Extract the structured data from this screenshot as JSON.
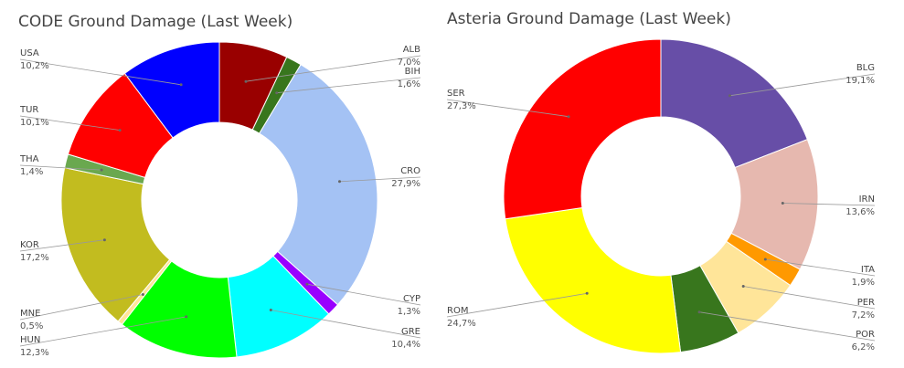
{
  "chart_data": [
    {
      "type": "pie",
      "donut": true,
      "title": "CODE Ground Damage (Last Week)",
      "slices": [
        {
          "label": "ALB",
          "value": 7.0,
          "display": "7,0%",
          "color": "#990000"
        },
        {
          "label": "BIH",
          "value": 1.6,
          "display": "1,6%",
          "color": "#38761d"
        },
        {
          "label": "CRO",
          "value": 27.9,
          "display": "27,9%",
          "color": "#a4c2f4"
        },
        {
          "label": "CYP",
          "value": 1.3,
          "display": "1,3%",
          "color": "#9900ff"
        },
        {
          "label": "GRE",
          "value": 10.4,
          "display": "10,4%",
          "color": "#00ffff"
        },
        {
          "label": "HUN",
          "value": 12.3,
          "display": "12,3%",
          "color": "#00ff00"
        },
        {
          "label": "MNE",
          "value": 0.5,
          "display": "0,5%",
          "color": "#ffe599"
        },
        {
          "label": "KOR",
          "value": 17.2,
          "display": "17,2%",
          "color": "#c2bc1f"
        },
        {
          "label": "THA",
          "value": 1.4,
          "display": "1,4%",
          "color": "#6aa84f"
        },
        {
          "label": "TUR",
          "value": 10.1,
          "display": "10,1%",
          "color": "#ff0000"
        },
        {
          "label": "USA",
          "value": 10.2,
          "display": "10,2%",
          "color": "#0000ff"
        }
      ]
    },
    {
      "type": "pie",
      "donut": true,
      "title": "Asteria Ground Damage (Last Week)",
      "slices": [
        {
          "label": "BLG",
          "value": 19.1,
          "display": "19,1%",
          "color": "#674ea7"
        },
        {
          "label": "IRN",
          "value": 13.6,
          "display": "13,6%",
          "color": "#e6b8af"
        },
        {
          "label": "ITA",
          "value": 1.9,
          "display": "1,9%",
          "color": "#ff9900"
        },
        {
          "label": "PER",
          "value": 7.2,
          "display": "7,2%",
          "color": "#ffe599"
        },
        {
          "label": "POR",
          "value": 6.2,
          "display": "6,2%",
          "color": "#38761d"
        },
        {
          "label": "ROM",
          "value": 24.7,
          "display": "24,7%",
          "color": "#ffff00"
        },
        {
          "label": "SER",
          "value": 27.3,
          "display": "27,3%",
          "color": "#ff0000"
        }
      ]
    }
  ]
}
